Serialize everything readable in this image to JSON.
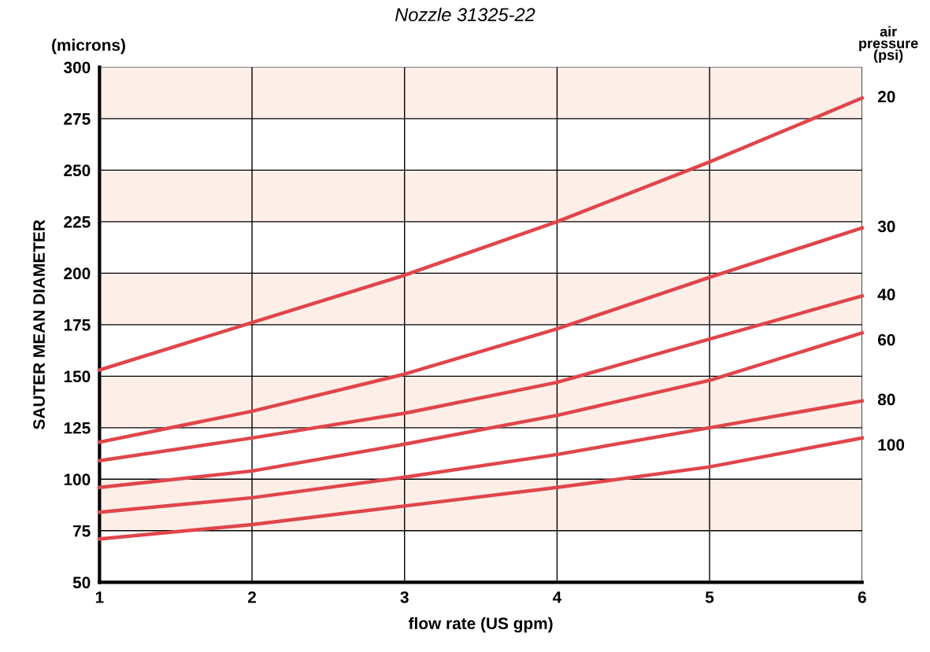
{
  "chart_data": {
    "type": "line",
    "title": "Nozzle 31325-22",
    "xlabel": "flow rate (US gpm)",
    "ylabel": "SAUTER MEAN DIAMETER",
    "legend_title": "air\npressure\n(psi)",
    "annotations": [
      "(microns)"
    ],
    "x": [
      1,
      2,
      3,
      4,
      5,
      6
    ],
    "series": [
      {
        "name": "20",
        "color": "#e0454a",
        "values": [
          153,
          176,
          199,
          225,
          254,
          285
        ]
      },
      {
        "name": "30",
        "color": "#e0454a",
        "values": [
          118,
          133,
          151,
          173,
          198,
          222
        ]
      },
      {
        "name": "40",
        "color": "#e0454a",
        "values": [
          109,
          120,
          132,
          147,
          168,
          189
        ]
      },
      {
        "name": "60",
        "color": "#e0454a",
        "values": [
          96,
          104,
          117,
          131,
          148,
          171
        ]
      },
      {
        "name": "80",
        "color": "#e0454a",
        "values": [
          84,
          91,
          101,
          112,
          125,
          138
        ]
      },
      {
        "name": "100",
        "color": "#e0454a",
        "values": [
          71,
          78,
          87,
          96,
          106,
          120
        ]
      }
    ],
    "xlim": [
      1,
      6
    ],
    "xticks": [
      1,
      2,
      3,
      4,
      5,
      6
    ],
    "ylim": [
      50,
      300
    ],
    "yticks": [
      50,
      75,
      100,
      125,
      150,
      175,
      200,
      225,
      250,
      275,
      300
    ],
    "bands": [
      {
        "axis": "y",
        "from": 275,
        "to": 300,
        "color": "#fdeee8"
      },
      {
        "axis": "y",
        "from": 225,
        "to": 250,
        "color": "#fdeee8"
      },
      {
        "axis": "y",
        "from": 175,
        "to": 200,
        "color": "#fdeee8"
      },
      {
        "axis": "y",
        "from": 125,
        "to": 150,
        "color": "#fdeee8"
      },
      {
        "axis": "y",
        "from": 75,
        "to": 100,
        "color": "#fdeee8"
      }
    ],
    "grid": true,
    "legend": "right",
    "marker": "none",
    "line_style": "solid"
  }
}
